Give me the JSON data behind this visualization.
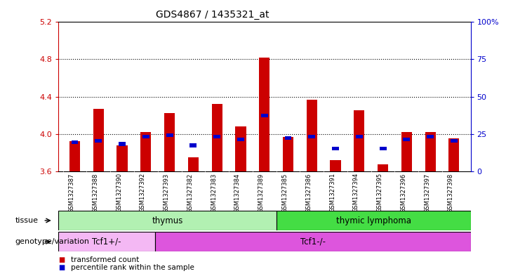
{
  "title": "GDS4867 / 1435321_at",
  "samples": [
    "GSM1327387",
    "GSM1327388",
    "GSM1327390",
    "GSM1327392",
    "GSM1327393",
    "GSM1327382",
    "GSM1327383",
    "GSM1327384",
    "GSM1327389",
    "GSM1327385",
    "GSM1327386",
    "GSM1327391",
    "GSM1327394",
    "GSM1327395",
    "GSM1327396",
    "GSM1327397",
    "GSM1327398"
  ],
  "red_values": [
    3.92,
    4.27,
    3.88,
    4.02,
    4.22,
    3.75,
    4.32,
    4.08,
    4.82,
    3.97,
    4.37,
    3.72,
    4.25,
    3.67,
    4.02,
    4.02,
    3.95
  ],
  "blue_percentile": [
    18,
    19,
    17,
    22,
    23,
    16,
    22,
    20,
    36,
    21,
    22,
    14,
    22,
    14,
    20,
    22,
    19
  ],
  "ymin": 3.6,
  "ymax": 5.2,
  "yticks": [
    3.6,
    4.0,
    4.4,
    4.8,
    5.2
  ],
  "ytick_labels": [
    "3.6",
    "4.0",
    "4.4",
    "4.8",
    "5.2"
  ],
  "right_yticks": [
    0,
    25,
    50,
    75,
    100
  ],
  "right_ytick_labels": [
    "0",
    "25",
    "50",
    "75",
    "100%"
  ],
  "grid_lines": [
    4.0,
    4.4,
    4.8
  ],
  "tissue_groups": [
    {
      "label": "thymus",
      "start": 0,
      "end": 9,
      "color": "#b2f0b2"
    },
    {
      "label": "thymic lymphoma",
      "start": 9,
      "end": 17,
      "color": "#44dd44"
    }
  ],
  "genotype_groups": [
    {
      "label": "Tcf1+/-",
      "start": 0,
      "end": 4,
      "color": "#f4b8f4"
    },
    {
      "label": "Tcf1-/-",
      "start": 4,
      "end": 17,
      "color": "#dd55dd"
    }
  ],
  "bar_color_red": "#cc0000",
  "bar_color_blue": "#0000cc",
  "bar_width": 0.45,
  "background_color": "#ffffff",
  "title_fontsize": 10,
  "axis_label_color_red": "#cc0000",
  "axis_label_color_blue": "#0000cc"
}
